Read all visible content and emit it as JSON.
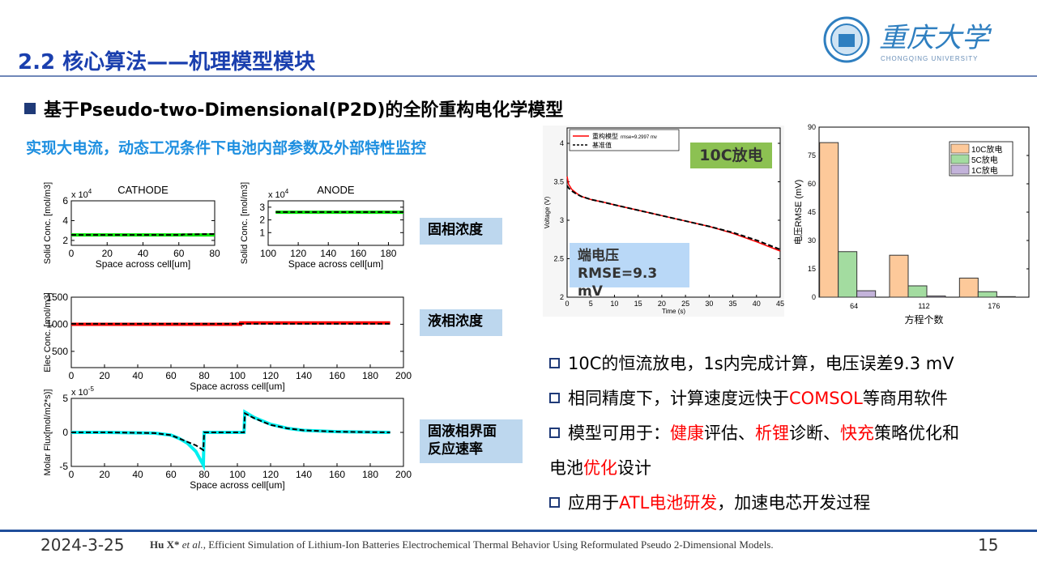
{
  "slide": {
    "title": "2.2 核心算法——机理模型模块",
    "heading": "基于Pseudo-two-Dimensional(P2D)的全阶重构电化学模型",
    "subtitle": "实现大电流，动态工况条件下电池内部参数及外部特性监控",
    "logo": {
      "name_cn": "重庆大学",
      "name_en": "CHONGQING UNIVERSITY",
      "color": "#2f7fc0"
    },
    "tags": [
      "固相浓度",
      "液相浓度",
      "固液相界面",
      "反应速率"
    ],
    "green_box": "10C放电",
    "blue_box": [
      "端电压",
      "RMSE=9.3 mV"
    ],
    "bullets": [
      [
        [
          {
            "t": "10C的恒流放电，1s内完成计算，电压误差9.3 mV"
          }
        ]
      ],
      [
        [
          {
            "t": "相同精度下，计算速度远快于"
          },
          {
            "t": "COMSOL",
            "red": true
          },
          {
            "t": "等商用软件"
          }
        ]
      ],
      [
        [
          {
            "t": "模型可用于："
          },
          {
            "t": "健康",
            "red": true
          },
          {
            "t": "评估、"
          },
          {
            "t": "析锂",
            "red": true
          },
          {
            "t": "诊断、"
          },
          {
            "t": "快充",
            "red": true
          },
          {
            "t": "策略优化和"
          }
        ],
        [
          {
            "t": "电池"
          },
          {
            "t": "优化",
            "red": true
          },
          {
            "t": "设计"
          }
        ]
      ],
      [
        [
          {
            "t": "应用于"
          },
          {
            "t": "ATL电池研发",
            "red": true
          },
          {
            "t": "，加速电芯开发过程"
          }
        ]
      ]
    ],
    "footer": {
      "date": "2024-3-25",
      "citation_author": "Hu X*",
      "citation_etal": " et al.",
      "citation_text": ", Efficient Simulation of Lithium-Ion Batteries Electrochemical Thermal Behavior Using Reformulated Pseudo 2-Dimensional Models.",
      "page": "15"
    },
    "colors": {
      "accent": "#1a3fae",
      "highlight": "#ff0000",
      "tag_bg": "#bdd7ee",
      "green_box": "#8cc152"
    }
  },
  "chart_data": [
    {
      "id": "cathode",
      "type": "line",
      "title": "CATHODE",
      "xlabel": "Space across cell[um]",
      "ylabel": "Solid Conc. [mol/m3]",
      "y_scale": "x 10",
      "y_scale_exp": "4",
      "xlim": [
        0,
        80
      ],
      "ylim": [
        1.5,
        6
      ],
      "xticks": [
        0,
        20,
        40,
        60,
        80
      ],
      "yticks": [
        2,
        4,
        6
      ],
      "series": [
        {
          "style": "solid",
          "color": "#00e600",
          "x": [
            0,
            80
          ],
          "y": [
            2.55,
            2.55
          ]
        },
        {
          "style": "dashed",
          "color": "#000000",
          "x": [
            0,
            62,
            62,
            80
          ],
          "y": [
            2.55,
            2.55,
            2.6,
            2.65
          ]
        }
      ]
    },
    {
      "id": "anode",
      "type": "line",
      "title": "ANODE",
      "xlabel": "Space across cell[um]",
      "ylabel": "Solid Conc. [mol/m3]",
      "y_scale": "x 10",
      "y_scale_exp": "4",
      "xlim": [
        100,
        190
      ],
      "ylim": [
        0,
        3.5
      ],
      "xticks": [
        100,
        120,
        140,
        160,
        180
      ],
      "yticks": [
        1,
        2,
        3
      ],
      "series": [
        {
          "style": "solid",
          "color": "#00e600",
          "x": [
            105,
            190
          ],
          "y": [
            2.6,
            2.6
          ]
        },
        {
          "style": "dashed",
          "color": "#000000",
          "x": [
            105,
            190
          ],
          "y": [
            2.62,
            2.62
          ]
        }
      ]
    },
    {
      "id": "elec",
      "type": "line",
      "title": "",
      "xlabel": "Space across cell[um]",
      "ylabel": "Elec Conc. [mol/m3]",
      "xlim": [
        0,
        200
      ],
      "ylim": [
        200,
        1500
      ],
      "xticks": [
        0,
        20,
        40,
        60,
        80,
        100,
        120,
        140,
        160,
        180,
        200
      ],
      "yticks": [
        500,
        1000,
        1500
      ],
      "series": [
        {
          "style": "solid",
          "color": "#ff0000",
          "x": [
            0,
            102,
            102,
            192
          ],
          "y": [
            1000,
            1000,
            1025,
            1025
          ]
        },
        {
          "style": "dashed",
          "color": "#000000",
          "x": [
            0,
            192
          ],
          "y": [
            1008,
            1008
          ]
        }
      ]
    },
    {
      "id": "flux",
      "type": "line",
      "title": "",
      "xlabel": "Space across cell[um]",
      "ylabel": "Molar Flux[mol/m2*s)]",
      "y_scale": "x 10",
      "y_scale_exp": "-5",
      "xlim": [
        0,
        200
      ],
      "ylim": [
        -5,
        5
      ],
      "xticks": [
        0,
        20,
        40,
        60,
        80,
        100,
        120,
        140,
        160,
        180,
        200
      ],
      "yticks": [
        -5,
        0,
        5
      ],
      "series": [
        {
          "style": "solid",
          "color": "#00f0f0",
          "x": [
            0,
            20,
            50,
            60,
            65,
            70,
            75,
            79.5,
            80,
            104,
            104.5,
            110,
            120,
            130,
            140,
            160,
            192
          ],
          "y": [
            0,
            0,
            -0.1,
            -0.4,
            -0.9,
            -1.6,
            -2.8,
            -4.8,
            0,
            0,
            3,
            2.2,
            1.2,
            0.6,
            0.3,
            0.1,
            0
          ]
        },
        {
          "style": "dashed",
          "color": "#000000",
          "x": [
            0,
            20,
            50,
            60,
            65,
            70,
            75,
            79.5,
            80,
            104,
            104.5,
            110,
            120,
            130,
            140,
            160,
            192
          ],
          "y": [
            0,
            0,
            -0.1,
            -0.4,
            -0.9,
            -1.4,
            -1.9,
            -2.6,
            0,
            0,
            2.8,
            2.1,
            1.1,
            0.6,
            0.3,
            0.1,
            0
          ]
        }
      ]
    },
    {
      "id": "voltage",
      "type": "line",
      "title": "",
      "xlabel": "Time (s)",
      "ylabel": "Voltage (V)",
      "xlim": [
        0,
        45
      ],
      "ylim": [
        2,
        4.2
      ],
      "xticks": [
        0,
        5,
        10,
        15,
        20,
        25,
        30,
        35,
        40,
        45
      ],
      "yticks": [
        2,
        2.5,
        3,
        3.5,
        4
      ],
      "legend": {
        "placement": "top-left",
        "entries": [
          {
            "label": "重构模型",
            "note": "rmse=9.2997 mv"
          },
          {
            "label": "基准值"
          }
        ]
      },
      "series": [
        {
          "name": "重构模型",
          "style": "solid",
          "color": "#ff0000",
          "x": [
            0,
            0.3,
            1,
            2,
            3,
            5,
            8,
            10,
            15,
            20,
            25,
            30,
            35,
            40,
            45
          ],
          "y": [
            3.57,
            3.47,
            3.4,
            3.35,
            3.31,
            3.27,
            3.23,
            3.2,
            3.13,
            3.06,
            2.99,
            2.92,
            2.83,
            2.72,
            2.6
          ]
        },
        {
          "name": "基准值",
          "style": "dashed",
          "color": "#000000",
          "x": [
            0,
            0.3,
            1,
            2,
            3,
            5,
            8,
            10,
            15,
            20,
            25,
            30,
            35,
            40,
            45
          ],
          "y": [
            3.45,
            3.42,
            3.38,
            3.34,
            3.31,
            3.27,
            3.23,
            3.2,
            3.13,
            3.06,
            2.99,
            2.92,
            2.84,
            2.74,
            2.62
          ]
        }
      ]
    },
    {
      "id": "rmse",
      "type": "bar",
      "title": "",
      "xlabel": "方程个数",
      "ylabel": "电压RMSE (mV)",
      "categories": [
        "64",
        "112",
        "176"
      ],
      "ylim": [
        0,
        90
      ],
      "yticks": [
        0,
        15,
        30,
        45,
        60,
        75,
        90
      ],
      "legend": {
        "placement": "top-right"
      },
      "series": [
        {
          "name": "10C放电",
          "color": "#fdc99a",
          "values": [
            81.8,
            22.2,
            10.1
          ]
        },
        {
          "name": "5C放电",
          "color": "#a3dca0",
          "values": [
            24.1,
            6.0,
            2.9
          ]
        },
        {
          "name": "1C放电",
          "color": "#c3b3da",
          "values": [
            3.4,
            0.6,
            0.3
          ]
        }
      ]
    }
  ]
}
